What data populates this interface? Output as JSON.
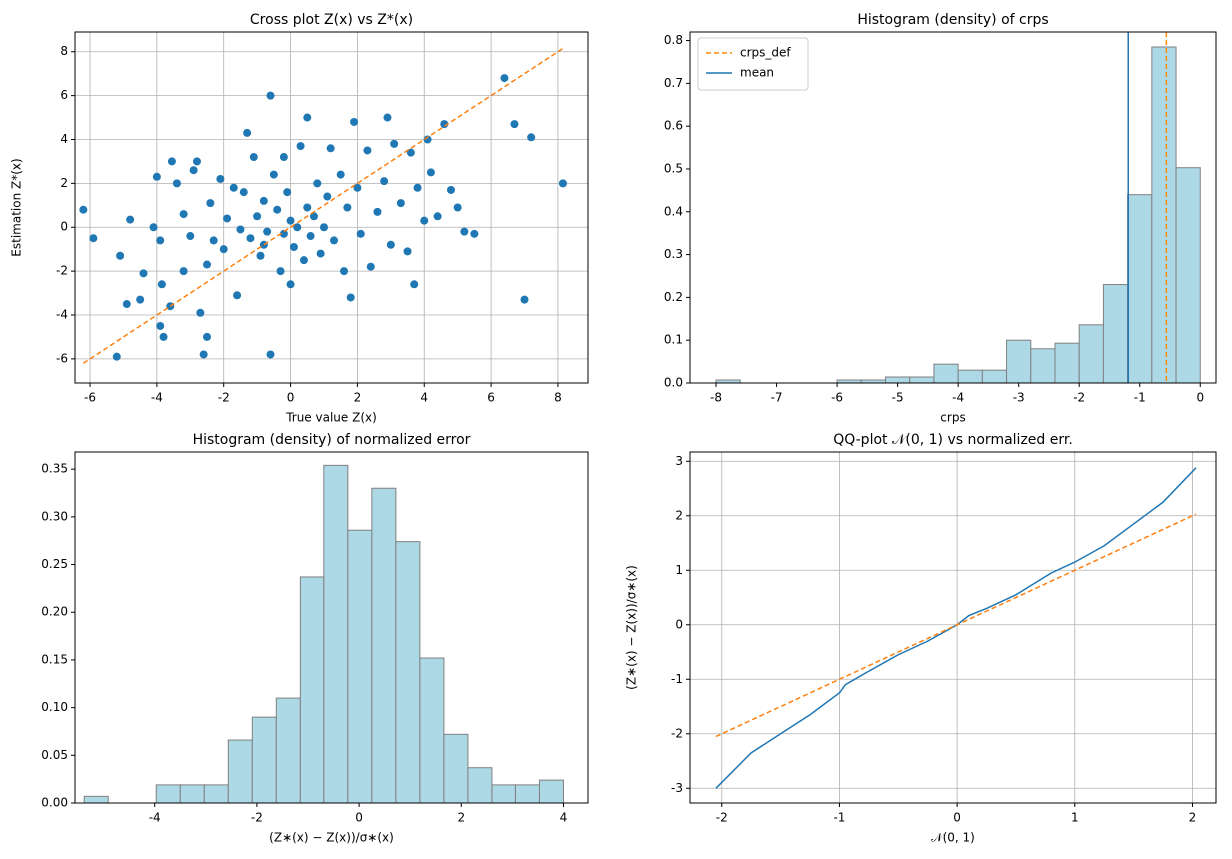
{
  "chart_data": [
    {
      "type": "scatter",
      "title": "Cross plot Z(x) vs Z*(x)",
      "xlabel": "True value Z(x)",
      "ylabel": "Estimation Z*(x)",
      "xlim": [
        -6.45,
        8.9
      ],
      "ylim": [
        -7.1,
        8.9
      ],
      "xticks": [
        -6,
        -4,
        -2,
        0,
        2,
        4,
        6,
        8
      ],
      "yticks": [
        -6,
        -4,
        -2,
        0,
        2,
        4,
        6,
        8
      ],
      "grid": true,
      "series": [
        {
          "kind": "scatter",
          "color": "#1f77b4",
          "x": [
            -6.2,
            -5.9,
            -5.2,
            -5.1,
            -4.9,
            -4.8,
            -4.5,
            -4.4,
            -4.1,
            -4.0,
            -3.9,
            -3.9,
            -3.8,
            -3.85,
            -3.6,
            -3.55,
            -3.4,
            -3.2,
            -3.2,
            -3.0,
            -2.9,
            -2.8,
            -2.7,
            -2.6,
            -2.5,
            -2.5,
            -2.4,
            -2.3,
            -2.1,
            -2.0,
            -1.9,
            -1.7,
            -1.6,
            -1.5,
            -1.4,
            -1.3,
            -1.2,
            -1.1,
            -1.0,
            -0.9,
            -0.8,
            -0.7,
            -0.6,
            -0.6,
            -0.5,
            -0.4,
            -0.3,
            -0.2,
            -0.1,
            0,
            0,
            0.1,
            0.3,
            0.4,
            0.5,
            0.5,
            0.6,
            0.8,
            0.9,
            1.1,
            1.2,
            1.3,
            1.5,
            1.6,
            1.7,
            1.8,
            1.9,
            2.0,
            2.1,
            2.3,
            2.4,
            2.6,
            2.8,
            2.9,
            3.0,
            3.1,
            3.3,
            3.5,
            3.6,
            3.7,
            3.8,
            4.0,
            4.1,
            4.2,
            4.4,
            4.6,
            4.8,
            5.0,
            5.2,
            5.5,
            6.4,
            6.7,
            7.0,
            7.2,
            8.15,
            0.2,
            -0.2,
            0.7,
            -0.8,
            1.0
          ],
          "y": [
            0.8,
            -0.5,
            -5.9,
            -1.3,
            -3.5,
            0.35,
            -3.3,
            -2.1,
            0,
            2.3,
            -4.5,
            -0.6,
            -5.0,
            -2.6,
            -3.6,
            3.0,
            2.0,
            -2.0,
            0.6,
            -0.4,
            2.6,
            3.0,
            -3.9,
            -5.8,
            -5.0,
            -1.7,
            1.1,
            -0.6,
            2.2,
            -1.0,
            0.4,
            1.8,
            -3.1,
            -0.1,
            1.6,
            4.3,
            -0.5,
            3.2,
            0.5,
            -1.3,
            1.2,
            -0.2,
            6.0,
            -5.8,
            2.4,
            0.8,
            -2.0,
            3.2,
            1.6,
            -2.6,
            0.3,
            -0.9,
            3.7,
            -1.5,
            5.0,
            0.9,
            -0.4,
            2.0,
            -1.2,
            1.4,
            3.6,
            -0.6,
            2.4,
            -2.0,
            0.9,
            -3.2,
            4.8,
            1.8,
            -0.3,
            3.5,
            -1.8,
            0.7,
            2.1,
            5.0,
            -0.8,
            3.8,
            1.1,
            -1.1,
            3.4,
            -2.6,
            1.8,
            0.3,
            4.0,
            2.5,
            0.5,
            4.7,
            1.7,
            0.9,
            -0.2,
            -0.3,
            6.8,
            4.7,
            -3.3,
            4.1,
            2.0,
            0.0,
            -0.3,
            0.5,
            -0.8,
            0.0
          ]
        },
        {
          "kind": "line",
          "color": "#ff7f0e",
          "dashed": true,
          "x": [
            -6.2,
            8.15
          ],
          "y": [
            -6.2,
            8.15
          ]
        }
      ]
    },
    {
      "type": "histogram",
      "title": "Histogram (density) of crps",
      "xlabel": "crps",
      "xlim": [
        -8.43,
        0.26
      ],
      "ylim": [
        0,
        0.82
      ],
      "xticks": [
        -8,
        -7,
        -6,
        -5,
        -4,
        -3,
        -2,
        -1,
        0
      ],
      "yticks": [
        {
          "value": 0,
          "label": "0.0"
        },
        0.1,
        0.2,
        0.3,
        0.4,
        0.5,
        0.6,
        0.7,
        0.8
      ],
      "grid": false,
      "color": "#add8e6",
      "edgecolor": "#808080",
      "bins": [
        -8,
        -7.6,
        -7.2,
        -6.8,
        -6.4,
        -6.0,
        -5.6,
        -5.2,
        -4.8,
        -4.4,
        -4.0,
        -3.6,
        -3.2,
        -2.8,
        -2.4,
        -2.0,
        -1.6,
        -1.2,
        -0.8,
        -0.4,
        0
      ],
      "values": [
        0.007,
        0,
        0,
        0,
        0,
        0.007,
        0.007,
        0.014,
        0.014,
        0.044,
        0.03,
        0.03,
        0.1,
        0.08,
        0.093,
        0.136,
        0.23,
        0.44,
        0.785,
        0.503
      ],
      "vlines": [
        {
          "name": "crps_def",
          "value": -0.56,
          "color": "#ff8c00",
          "dashed": true
        },
        {
          "name": "mean",
          "value": -1.19,
          "color": "#1f77b4",
          "dashed": false
        }
      ],
      "legend": "upper left"
    },
    {
      "type": "histogram",
      "title": "Histogram (density) of normalized error",
      "xlabel": "(Z∗(x) − Z(x))/σ∗(x)",
      "xlim": [
        -5.56,
        4.48
      ],
      "ylim": [
        0,
        0.368
      ],
      "xticks": [
        -4,
        -2,
        0,
        2,
        4
      ],
      "yticks": [
        {
          "value": 0,
          "label": "0.00"
        },
        0.05,
        {
          "value": 0.1,
          "label": "0.10"
        },
        0.15,
        {
          "value": 0.2,
          "label": "0.20"
        },
        0.25,
        {
          "value": 0.3,
          "label": "0.30"
        },
        0.35
      ],
      "grid": false,
      "color": "#add8e6",
      "edgecolor": "#808080",
      "bins": [
        -5.38,
        -4.91,
        -4.44,
        -3.97,
        -3.5,
        -3.03,
        -2.56,
        -2.09,
        -1.62,
        -1.15,
        -0.69,
        -0.22,
        0.25,
        0.72,
        1.19,
        1.66,
        2.13,
        2.6,
        3.06,
        3.53,
        4.0
      ],
      "values": [
        0.007,
        0,
        0,
        0.019,
        0.019,
        0.019,
        0.066,
        0.09,
        0.11,
        0.237,
        0.354,
        0.286,
        0.33,
        0.274,
        0.152,
        0.072,
        0.037,
        0.019,
        0.019,
        0.024
      ]
    },
    {
      "type": "line",
      "title": "QQ-plot 𝒩(0, 1) vs normalized err.",
      "xlabel": "𝒩(0, 1)",
      "ylabel": "(Z∗(x) − Z(x))/σ∗(x)",
      "xlim": [
        -2.27,
        2.2
      ],
      "ylim": [
        -3.27,
        3.17
      ],
      "xticks": [
        -2,
        -1,
        0,
        1,
        2
      ],
      "yticks": [
        -3,
        -2,
        -1,
        0,
        1,
        2,
        3
      ],
      "grid": true,
      "series": [
        {
          "kind": "line",
          "color": "#1f77b4",
          "dashed": false,
          "x": [
            -2.05,
            -1.75,
            -1.5,
            -1.25,
            -1.0,
            -0.95,
            -0.75,
            -0.5,
            -0.25,
            0,
            0.1,
            0.25,
            0.5,
            0.65,
            0.8,
            1.0,
            1.25,
            1.5,
            1.75,
            2.03
          ],
          "y": [
            -3.0,
            -2.35,
            -2.0,
            -1.65,
            -1.25,
            -1.1,
            -0.85,
            -0.55,
            -0.3,
            0,
            0.17,
            0.3,
            0.55,
            0.75,
            0.95,
            1.15,
            1.45,
            1.85,
            2.25,
            2.88
          ]
        },
        {
          "kind": "line",
          "color": "#ff7f0e",
          "dashed": true,
          "x": [
            -2.05,
            2.03
          ],
          "y": [
            -2.05,
            2.03
          ]
        }
      ]
    }
  ]
}
